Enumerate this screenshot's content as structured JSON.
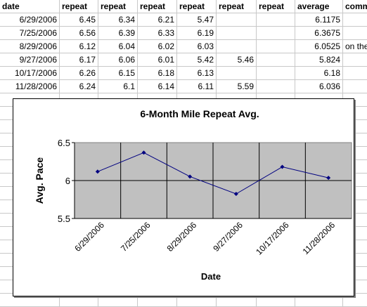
{
  "sheet": {
    "headers": [
      "date",
      "repeat",
      "repeat",
      "repeat",
      "repeat",
      "repeat",
      "repeat",
      "average",
      "comm"
    ],
    "rows": [
      {
        "date": "6/29/2006",
        "r": [
          "6.45",
          "6.34",
          "6.21",
          "5.47",
          "",
          ""
        ],
        "avg": "6.1175",
        "comment": ""
      },
      {
        "date": "7/25/2006",
        "r": [
          "6.56",
          "6.39",
          "6.33",
          "6.19",
          "",
          ""
        ],
        "avg": "6.3675",
        "comment": ""
      },
      {
        "date": "8/29/2006",
        "r": [
          "6.12",
          "6.04",
          "6.02",
          "6.03",
          "",
          ""
        ],
        "avg": "6.0525",
        "comment": "on the"
      },
      {
        "date": "9/27/2006",
        "r": [
          "6.17",
          "6.06",
          "6.01",
          "5.42",
          "5.46",
          ""
        ],
        "avg": "5.824",
        "comment": ""
      },
      {
        "date": "10/17/2006",
        "r": [
          "6.26",
          "6.15",
          "6.18",
          "6.13",
          "",
          ""
        ],
        "avg": "6.18",
        "comment": ""
      },
      {
        "date": "11/28/2006",
        "r": [
          "6.24",
          "6.1",
          "6.14",
          "6.11",
          "5.59",
          ""
        ],
        "avg": "6.036",
        "comment": ""
      }
    ]
  },
  "chart_data": {
    "type": "line",
    "title": "6-Month Mile Repeat Avg.",
    "xlabel": "Date",
    "ylabel": "Avg. Pace",
    "categories": [
      "6/29/2006",
      "7/25/2006",
      "8/29/2006",
      "9/27/2006",
      "10/17/2006",
      "11/28/2006"
    ],
    "tick_labels": [
      "6/29/2006",
      "7/25/2006",
      "8/29/2006",
      "9/27/2006",
      "10/17/2006",
      "11/28/2006"
    ],
    "series": [
      {
        "values": [
          6.1175,
          6.3675,
          6.0525,
          5.824,
          6.18,
          6.036
        ]
      }
    ],
    "ylim": [
      5.5,
      6.5
    ],
    "yticks": [
      "5.5",
      "6",
      "6.5"
    ],
    "grid": true,
    "legend": "none",
    "colors": {
      "line": "#000080",
      "plot_bg": "#c0c0c0",
      "grid": "#000000"
    }
  }
}
